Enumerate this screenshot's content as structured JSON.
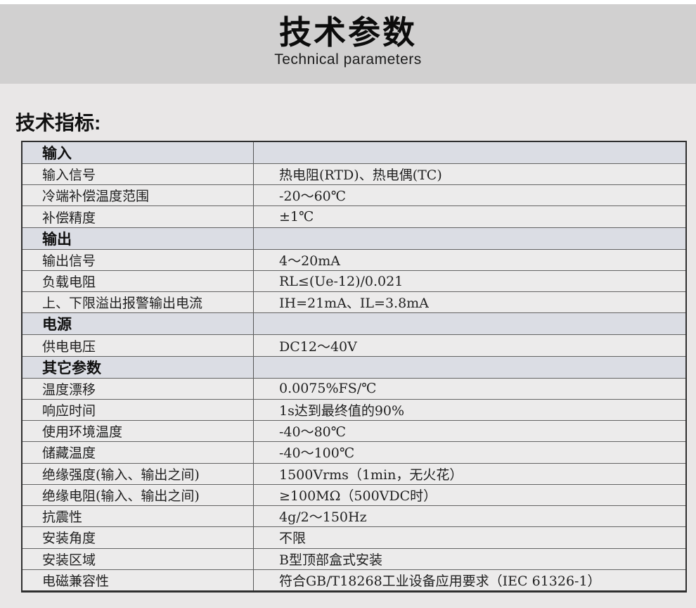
{
  "header": {
    "title": "技术参数",
    "subtitle": "Technical parameters"
  },
  "section_label": "技术指标:",
  "table": {
    "rows": [
      {
        "type": "section",
        "label": "输入",
        "value": ""
      },
      {
        "type": "data",
        "label": "输入信号",
        "value": "热电阻(RTD)、热电偶(TC)"
      },
      {
        "type": "data",
        "label": "冷端补偿温度范围",
        "value": "-20～60℃"
      },
      {
        "type": "data",
        "label": "补偿精度",
        "value": "±1℃"
      },
      {
        "type": "section",
        "label": "输出",
        "value": ""
      },
      {
        "type": "data",
        "label": "输出信号",
        "value": "4～20mA"
      },
      {
        "type": "data",
        "label": "负载电阻",
        "value": "RL≤(Ue-12)/0.021"
      },
      {
        "type": "data",
        "label": "上、下限溢出报警输出电流",
        "value": "IH=21mA、IL=3.8mA"
      },
      {
        "type": "section",
        "label": "电源",
        "value": ""
      },
      {
        "type": "data",
        "label": "供电电压",
        "value": "DC12～40V"
      },
      {
        "type": "section",
        "label": "其它参数",
        "value": ""
      },
      {
        "type": "data",
        "label": "温度漂移",
        "value": "0.0075%FS/℃"
      },
      {
        "type": "data",
        "label": "响应时间",
        "value": "1s达到最终值的90%"
      },
      {
        "type": "data",
        "label": "使用环境温度",
        "value": "-40～80℃"
      },
      {
        "type": "data",
        "label": "储藏温度",
        "value": "-40～100℃"
      },
      {
        "type": "data",
        "label": "绝缘强度(输入、输出之间)",
        "value": "1500Vrms（1min，无火花）"
      },
      {
        "type": "data",
        "label": "绝缘电阻(输入、输出之间)",
        "value": "≥100MΩ（500VDC时）"
      },
      {
        "type": "data",
        "label": "抗震性",
        "value": "4g/2～150Hz"
      },
      {
        "type": "data",
        "label": "安装角度",
        "value": "不限"
      },
      {
        "type": "data",
        "label": "安装区域",
        "value": "B型顶部盒式安装"
      },
      {
        "type": "data",
        "label": "电磁兼容性",
        "value": "符合GB/T18268工业设备应用要求（IEC 61326-1）"
      }
    ]
  },
  "colors": {
    "banner_bg": "#d1d0d0",
    "page_bg": "#e9e7e7",
    "row_bg": "#ecebeb",
    "section_row_bg": "#dbdde4",
    "outer_border": "#2f2f2f",
    "inner_border": "#636363",
    "text": "#212121"
  }
}
